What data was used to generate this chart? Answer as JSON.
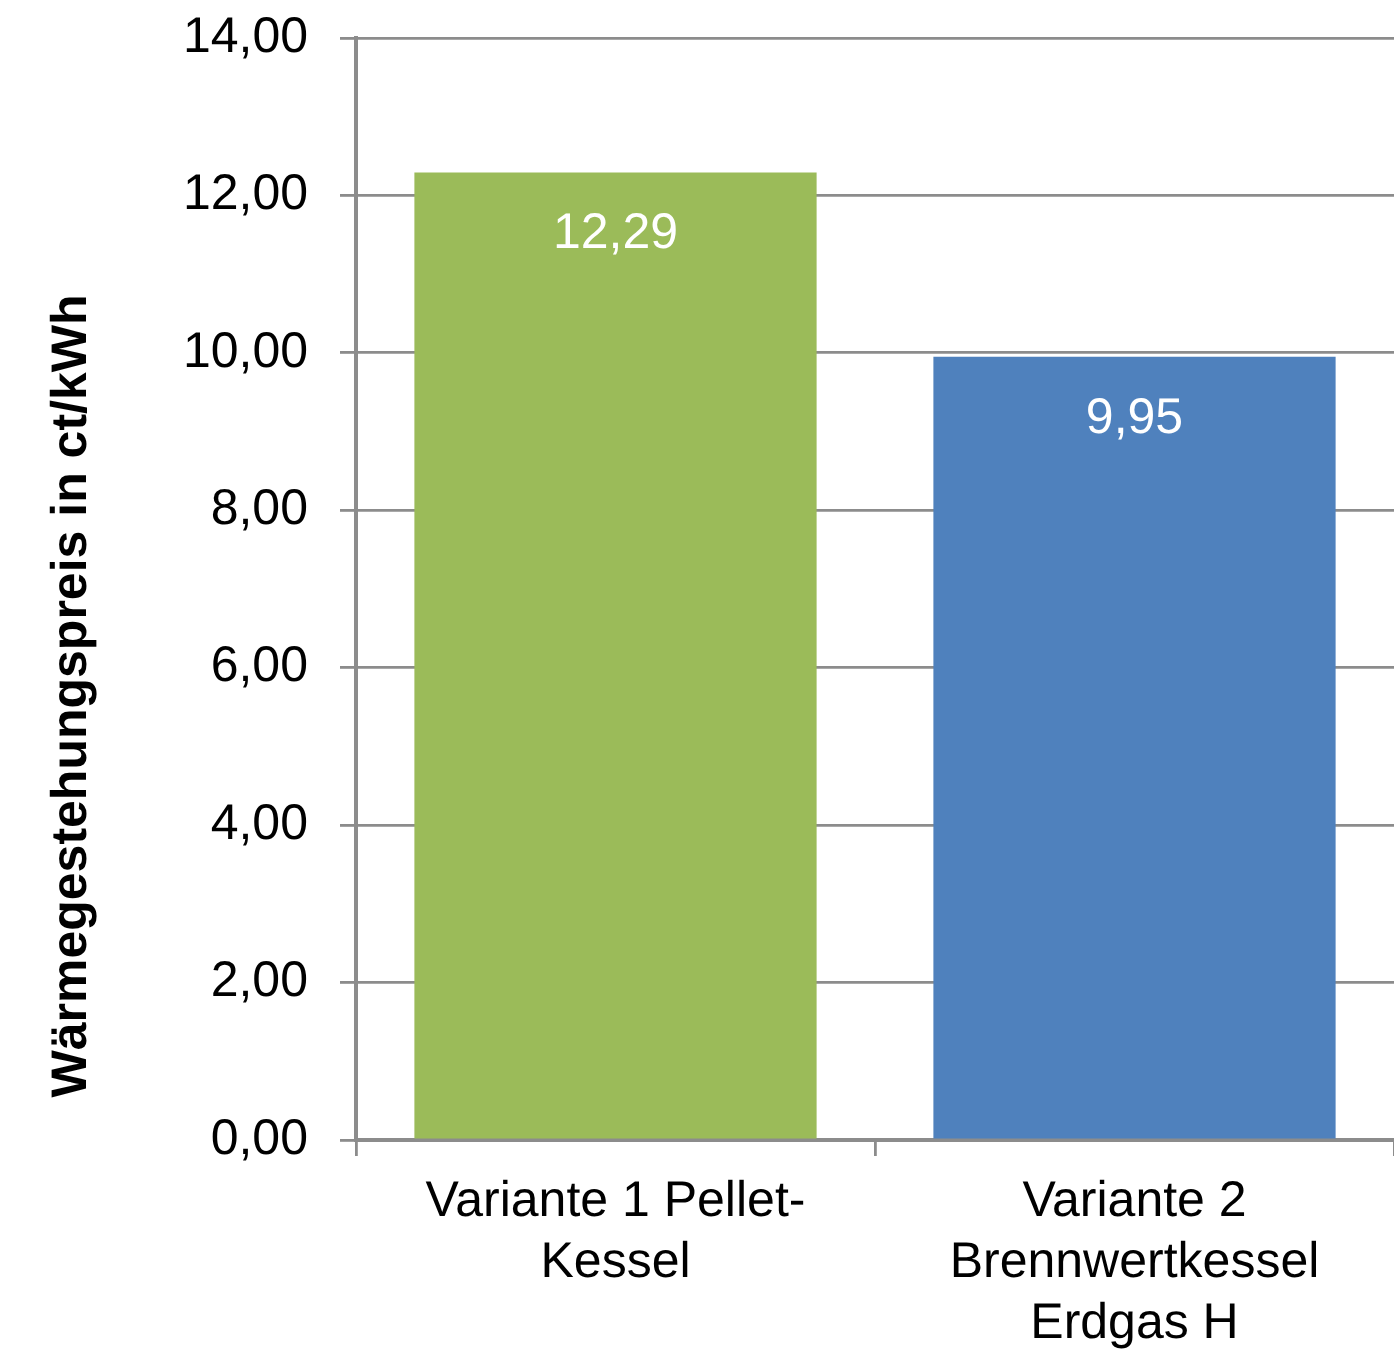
{
  "chart_data": {
    "type": "bar",
    "ylabel": "Wärmegestehungspreis in ct/kWh",
    "categories": [
      "Variante 1 Pellet-Kessel",
      "Variante 2 Brennwertkessel Erdgas H"
    ],
    "values": [
      12.29,
      9.95
    ],
    "colors": [
      "#9bbb59",
      "#4f81bd"
    ],
    "value_labels": [
      "12,29",
      "9,95"
    ],
    "ylim": [
      0,
      14
    ],
    "yticks": [
      {
        "value": 0,
        "label": "0,00"
      },
      {
        "value": 2,
        "label": "2,00"
      },
      {
        "value": 4,
        "label": "4,00"
      },
      {
        "value": 6,
        "label": "6,00"
      },
      {
        "value": 8,
        "label": "8,00"
      },
      {
        "value": 10,
        "label": "10,00"
      },
      {
        "value": 12,
        "label": "12,00"
      },
      {
        "value": 14,
        "label": "14,00"
      }
    ],
    "grid": "y"
  }
}
